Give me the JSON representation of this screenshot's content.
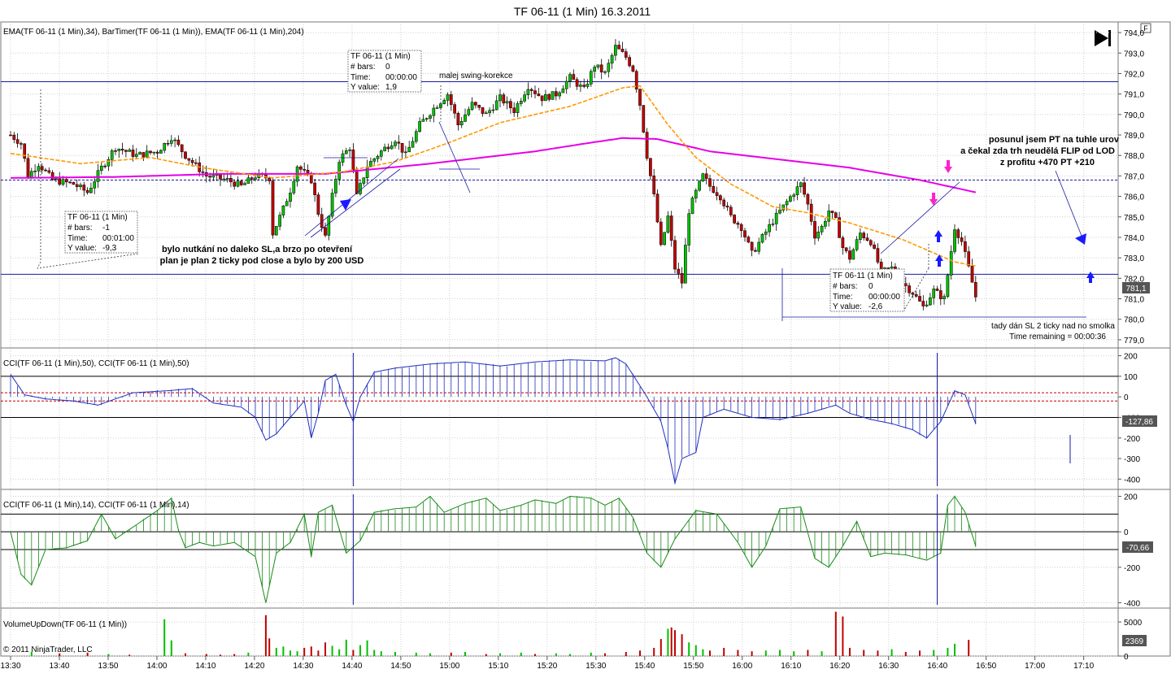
{
  "window": {
    "title": "TF 06-11 (1 Min)  16.3.2011",
    "corner_button": "F",
    "copyright": "© 2011 NinjaTrader, LLC"
  },
  "colors": {
    "bull": "#00c000",
    "bear": "#c00000",
    "ema34": "#ff9900",
    "ema204": "#e600e6",
    "cci50": "#1f2fbf",
    "cci14": "#1a8a1a",
    "grid": "#cfcfcf",
    "hline": "#1a1aa0"
  },
  "panels": {
    "price": {
      "label": "EMA(TF 06-11 (1 Min),34), BarTimer(TF 06-11 (1 Min)), EMA(TF 06-11 (1 Min),204)",
      "last_value": "781,1",
      "timer": "Time remaining = 00:00:36"
    },
    "cci50": {
      "label": "CCI(TF 06-11 (1 Min),50), CCI(TF 06-11 (1 Min),50)",
      "last_value": "-127,86"
    },
    "cci14": {
      "label": "CCI(TF 06-11 (1 Min),14), CCI(TF 06-11 (1 Min),14)",
      "last_value": "-70,66"
    },
    "volume": {
      "label": "VolumeUpDown(TF 06-11 (1 Min))",
      "last_value": "2369"
    }
  },
  "annotations": {
    "left_note": "bylo nutkání no daleko SL,a brzo po otevření",
    "left_note2": "plan je plan 2 ticky pod close a bylo by 200 USD",
    "swing": "malej swing-korekce",
    "right_note1": "posunul jsem PT na tuhle urov",
    "right_note2": "a čekal zda trh neudělá FLIP od LOD",
    "right_note3": "z profitu +470 PT +210",
    "sl_note": "tady dán SL 2 ticky nad no smolka"
  },
  "infoboxes": [
    {
      "title": "TF 06-11 (1 Min)",
      "bars_label": "# bars:",
      "bars": "-1",
      "time_label": "Time:",
      "time": "00:01:00",
      "yv_label": "Y value:",
      "yv": "-9,3"
    },
    {
      "title": "TF 06-11 (1 Min)",
      "bars_label": "# bars:",
      "bars": "0",
      "time_label": "Time:",
      "time": "00:00:00",
      "yv_label": "Y value:",
      "yv": "1,9"
    },
    {
      "title": "TF 06-11 (1 Min)",
      "bars_label": "# bars:",
      "bars": "0",
      "time_label": "Time:",
      "time": "00:00:00",
      "yv_label": "Y value:",
      "yv": "-2,6"
    }
  ],
  "chart_data": {
    "type": "candlestick",
    "symbol": "TF 06-11 (1 Min)",
    "date": "16.3.2011",
    "x_tick_labels": [
      "13:30",
      "13:40",
      "13:50",
      "14:00",
      "14:10",
      "14:20",
      "14:30",
      "14:40",
      "14:50",
      "15:00",
      "15:10",
      "15:20",
      "15:30",
      "15:40",
      "15:50",
      "16:00",
      "16:10",
      "16:20",
      "16:30",
      "16:40",
      "16:50",
      "17:00",
      "17:10"
    ],
    "price_axis": {
      "ylim": [
        778.6,
        794.4
      ],
      "ticks": [
        "794,0",
        "793,0",
        "792,0",
        "791,0",
        "790,0",
        "789,0",
        "788,0",
        "787,0",
        "786,0",
        "785,0",
        "784,0",
        "783,0",
        "782,0",
        "781,0",
        "780,0",
        "779,0"
      ]
    },
    "cci50_axis": {
      "ylim": [
        -450,
        230
      ],
      "ticks": [
        "200",
        "100",
        "0",
        "-100",
        "-200",
        "-300",
        "-400"
      ]
    },
    "cci14_axis": {
      "ylim": [
        -430,
        230
      ],
      "ticks": [
        "200",
        "0",
        "-200",
        "-400"
      ]
    },
    "volume_axis": {
      "ylim": [
        0,
        6800
      ],
      "ticks": [
        "5000",
        "0"
      ]
    },
    "horizontal_levels": [
      791.6,
      786.8,
      782.2
    ],
    "price_close_path": [
      [
        0,
        789.0
      ],
      [
        3,
        788.6
      ],
      [
        5,
        787.0
      ],
      [
        8,
        787.6
      ],
      [
        12,
        786.8
      ],
      [
        18,
        786.6
      ],
      [
        22,
        786.2
      ],
      [
        26,
        787.4
      ],
      [
        30,
        788.4
      ],
      [
        36,
        788.0
      ],
      [
        42,
        788.2
      ],
      [
        46,
        788.9
      ],
      [
        50,
        788.0
      ],
      [
        56,
        787.0
      ],
      [
        62,
        786.8
      ],
      [
        66,
        786.5
      ],
      [
        70,
        787.0
      ],
      [
        74,
        786.9
      ],
      [
        75,
        784.2
      ],
      [
        78,
        785.4
      ],
      [
        80,
        786.3
      ],
      [
        82,
        787.5
      ],
      [
        86,
        786.8
      ],
      [
        88,
        785.2
      ],
      [
        90,
        784.0
      ],
      [
        92,
        786.0
      ],
      [
        94,
        787.8
      ],
      [
        97,
        788.4
      ],
      [
        99,
        786.0
      ],
      [
        102,
        787.5
      ],
      [
        106,
        788.2
      ],
      [
        110,
        788.8
      ],
      [
        113,
        788.0
      ],
      [
        117,
        789.5
      ],
      [
        121,
        790.3
      ],
      [
        125,
        791.0
      ],
      [
        128,
        789.5
      ],
      [
        132,
        790.5
      ],
      [
        136,
        790.0
      ],
      [
        140,
        790.8
      ],
      [
        144,
        790.2
      ],
      [
        148,
        791.4
      ],
      [
        152,
        790.8
      ],
      [
        156,
        791.0
      ],
      [
        160,
        791.8
      ],
      [
        164,
        791.2
      ],
      [
        167,
        792.4
      ],
      [
        170,
        792.0
      ],
      [
        173,
        793.3
      ],
      [
        176,
        792.8
      ],
      [
        178,
        792.2
      ],
      [
        180,
        790.5
      ],
      [
        182,
        788.0
      ],
      [
        184,
        786.0
      ],
      [
        186,
        783.5
      ],
      [
        188,
        785.0
      ],
      [
        190,
        782.5
      ],
      [
        192,
        781.8
      ],
      [
        194,
        785.3
      ],
      [
        196,
        786.2
      ],
      [
        198,
        787.0
      ],
      [
        200,
        786.5
      ],
      [
        203,
        786.0
      ],
      [
        206,
        785.0
      ],
      [
        209,
        784.5
      ],
      [
        212,
        783.2
      ],
      [
        215,
        784.0
      ],
      [
        218,
        784.8
      ],
      [
        221,
        785.5
      ],
      [
        224,
        786.2
      ],
      [
        226,
        786.6
      ],
      [
        228,
        785.6
      ],
      [
        230,
        784.1
      ],
      [
        232,
        784.5
      ],
      [
        234,
        785.3
      ],
      [
        236,
        784.8
      ],
      [
        238,
        783.5
      ],
      [
        240,
        783.0
      ],
      [
        243,
        784.2
      ],
      [
        246,
        783.8
      ],
      [
        249,
        782.3
      ],
      [
        252,
        782.5
      ],
      [
        255,
        781.8
      ],
      [
        258,
        781.3
      ],
      [
        261,
        780.6
      ],
      [
        264,
        781.4
      ],
      [
        267,
        781.0
      ],
      [
        270,
        784.5
      ],
      [
        272,
        783.8
      ],
      [
        274,
        782.5
      ],
      [
        276,
        781.1
      ]
    ],
    "ema34_path": [
      [
        0,
        788.1
      ],
      [
        20,
        787.6
      ],
      [
        40,
        787.9
      ],
      [
        55,
        787.4
      ],
      [
        75,
        786.9
      ],
      [
        95,
        787.2
      ],
      [
        110,
        787.7
      ],
      [
        125,
        788.6
      ],
      [
        140,
        789.6
      ],
      [
        160,
        790.4
      ],
      [
        175,
        791.3
      ],
      [
        180,
        791.4
      ],
      [
        188,
        789.5
      ],
      [
        196,
        787.9
      ],
      [
        206,
        786.6
      ],
      [
        218,
        785.5
      ],
      [
        228,
        785.2
      ],
      [
        240,
        784.7
      ],
      [
        255,
        783.9
      ],
      [
        270,
        782.8
      ],
      [
        276,
        782.6
      ]
    ],
    "ema204_path": [
      [
        0,
        786.9
      ],
      [
        30,
        786.95
      ],
      [
        60,
        787.1
      ],
      [
        90,
        787.1
      ],
      [
        120,
        787.6
      ],
      [
        150,
        788.2
      ],
      [
        165,
        788.6
      ],
      [
        175,
        788.85
      ],
      [
        185,
        788.8
      ],
      [
        200,
        788.2
      ],
      [
        220,
        787.8
      ],
      [
        240,
        787.4
      ],
      [
        260,
        786.8
      ],
      [
        276,
        786.2
      ]
    ],
    "series": [
      {
        "name": "EMA(TF 06-11 (1 Min),34)",
        "color": "#ff9900"
      },
      {
        "name": "EMA(TF 06-11 (1 Min),204)",
        "color": "#e600e6"
      }
    ],
    "cci50_path": [
      [
        0,
        110
      ],
      [
        4,
        10
      ],
      [
        10,
        -10
      ],
      [
        18,
        -20
      ],
      [
        25,
        -40
      ],
      [
        35,
        20
      ],
      [
        45,
        30
      ],
      [
        52,
        40
      ],
      [
        58,
        -30
      ],
      [
        66,
        -50
      ],
      [
        70,
        -100
      ],
      [
        73,
        -210
      ],
      [
        76,
        -180
      ],
      [
        80,
        -100
      ],
      [
        84,
        -20
      ],
      [
        86,
        -200
      ],
      [
        88,
        -80
      ],
      [
        90,
        80
      ],
      [
        93,
        110
      ],
      [
        96,
        -40
      ],
      [
        98,
        -120
      ],
      [
        100,
        0
      ],
      [
        104,
        120
      ],
      [
        110,
        140
      ],
      [
        120,
        160
      ],
      [
        130,
        170
      ],
      [
        140,
        150
      ],
      [
        150,
        170
      ],
      [
        160,
        180
      ],
      [
        170,
        175
      ],
      [
        173,
        190
      ],
      [
        176,
        160
      ],
      [
        182,
        0
      ],
      [
        186,
        -120
      ],
      [
        188,
        -250
      ],
      [
        190,
        -420
      ],
      [
        192,
        -300
      ],
      [
        196,
        -270
      ],
      [
        198,
        -100
      ],
      [
        204,
        -60
      ],
      [
        212,
        -100
      ],
      [
        220,
        -110
      ],
      [
        228,
        -80
      ],
      [
        232,
        -60
      ],
      [
        236,
        -40
      ],
      [
        240,
        -80
      ],
      [
        246,
        -110
      ],
      [
        252,
        -130
      ],
      [
        258,
        -160
      ],
      [
        262,
        -200
      ],
      [
        266,
        -120
      ],
      [
        270,
        30
      ],
      [
        273,
        10
      ],
      [
        276,
        -130
      ]
    ],
    "cci14_path": [
      [
        0,
        0
      ],
      [
        3,
        -240
      ],
      [
        6,
        -300
      ],
      [
        10,
        -100
      ],
      [
        16,
        -90
      ],
      [
        22,
        -50
      ],
      [
        26,
        100
      ],
      [
        30,
        -40
      ],
      [
        36,
        40
      ],
      [
        42,
        120
      ],
      [
        46,
        190
      ],
      [
        48,
        10
      ],
      [
        50,
        -90
      ],
      [
        54,
        -60
      ],
      [
        58,
        -80
      ],
      [
        64,
        -60
      ],
      [
        70,
        -140
      ],
      [
        73,
        -400
      ],
      [
        76,
        -120
      ],
      [
        80,
        -60
      ],
      [
        84,
        100
      ],
      [
        86,
        -140
      ],
      [
        88,
        110
      ],
      [
        92,
        150
      ],
      [
        96,
        -120
      ],
      [
        100,
        -50
      ],
      [
        104,
        110
      ],
      [
        110,
        130
      ],
      [
        116,
        140
      ],
      [
        120,
        200
      ],
      [
        124,
        110
      ],
      [
        130,
        160
      ],
      [
        136,
        190
      ],
      [
        140,
        120
      ],
      [
        146,
        150
      ],
      [
        150,
        180
      ],
      [
        156,
        160
      ],
      [
        160,
        200
      ],
      [
        166,
        190
      ],
      [
        170,
        150
      ],
      [
        174,
        190
      ],
      [
        178,
        80
      ],
      [
        182,
        -120
      ],
      [
        186,
        -200
      ],
      [
        190,
        -40
      ],
      [
        196,
        120
      ],
      [
        202,
        100
      ],
      [
        208,
        -60
      ],
      [
        212,
        -200
      ],
      [
        216,
        -80
      ],
      [
        220,
        130
      ],
      [
        226,
        140
      ],
      [
        230,
        -150
      ],
      [
        234,
        -200
      ],
      [
        238,
        -80
      ],
      [
        242,
        60
      ],
      [
        246,
        -140
      ],
      [
        250,
        -120
      ],
      [
        256,
        -130
      ],
      [
        262,
        -160
      ],
      [
        266,
        -120
      ],
      [
        268,
        150
      ],
      [
        270,
        200
      ],
      [
        273,
        110
      ],
      [
        276,
        -80
      ]
    ],
    "volume_bars": [
      [
        6,
        600
      ],
      [
        14,
        400
      ],
      [
        22,
        500
      ],
      [
        28,
        300
      ],
      [
        34,
        200
      ],
      [
        44,
        5400
      ],
      [
        46,
        2300
      ],
      [
        50,
        400
      ],
      [
        56,
        300
      ],
      [
        60,
        200
      ],
      [
        64,
        300
      ],
      [
        68,
        500
      ],
      [
        73,
        6000
      ],
      [
        74,
        2600
      ],
      [
        76,
        1200
      ],
      [
        78,
        1400
      ],
      [
        80,
        800
      ],
      [
        82,
        700
      ],
      [
        84,
        1200
      ],
      [
        86,
        1400
      ],
      [
        88,
        800
      ],
      [
        90,
        2000
      ],
      [
        92,
        1500
      ],
      [
        94,
        1000
      ],
      [
        96,
        2400
      ],
      [
        98,
        900
      ],
      [
        100,
        1600
      ],
      [
        102,
        2300
      ],
      [
        104,
        900
      ],
      [
        106,
        700
      ],
      [
        110,
        600
      ],
      [
        116,
        500
      ],
      [
        120,
        400
      ],
      [
        126,
        500
      ],
      [
        130,
        600
      ],
      [
        136,
        300
      ],
      [
        140,
        400
      ],
      [
        146,
        500
      ],
      [
        150,
        300
      ],
      [
        156,
        400
      ],
      [
        160,
        300
      ],
      [
        166,
        500
      ],
      [
        170,
        400
      ],
      [
        176,
        600
      ],
      [
        180,
        800
      ],
      [
        184,
        1200
      ],
      [
        186,
        2500
      ],
      [
        188,
        4000
      ],
      [
        189,
        4200
      ],
      [
        190,
        3800
      ],
      [
        192,
        3200
      ],
      [
        194,
        2000
      ],
      [
        196,
        1600
      ],
      [
        198,
        1000
      ],
      [
        200,
        800
      ],
      [
        204,
        1200
      ],
      [
        208,
        900
      ],
      [
        212,
        700
      ],
      [
        216,
        800
      ],
      [
        220,
        900
      ],
      [
        224,
        700
      ],
      [
        228,
        900
      ],
      [
        232,
        700
      ],
      [
        236,
        6500
      ],
      [
        238,
        5800
      ],
      [
        240,
        1200
      ],
      [
        244,
        900
      ],
      [
        248,
        800
      ],
      [
        252,
        1000
      ],
      [
        256,
        600
      ],
      [
        260,
        800
      ],
      [
        264,
        900
      ],
      [
        268,
        1200
      ],
      [
        270,
        1800
      ],
      [
        274,
        2369
      ]
    ]
  }
}
